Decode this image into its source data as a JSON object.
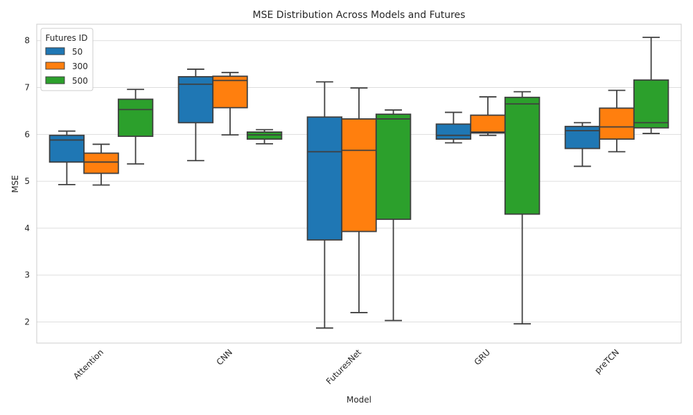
{
  "chart_data": {
    "type": "box",
    "title": "MSE Distribution Across Models and Futures",
    "xlabel": "Model",
    "ylabel": "MSE",
    "ylim": [
      1.55,
      8.35
    ],
    "yticks": [
      2,
      3,
      4,
      5,
      6,
      7,
      8
    ],
    "grid": true,
    "legend": {
      "title": "Futures ID",
      "position": "top-left"
    },
    "categories": [
      "Attention",
      "CNN",
      "FuturesNet",
      "GRU",
      "preTCN"
    ],
    "series": [
      {
        "name": "50",
        "color": "#1f77b4",
        "boxes": [
          {
            "min": 4.93,
            "q1": 5.41,
            "median": 5.88,
            "q3": 5.98,
            "max": 6.07
          },
          {
            "min": 5.44,
            "q1": 6.25,
            "median": 7.07,
            "q3": 7.23,
            "max": 7.39
          },
          {
            "min": 1.87,
            "q1": 3.75,
            "median": 5.63,
            "q3": 6.37,
            "max": 7.12
          },
          {
            "min": 5.82,
            "q1": 5.9,
            "median": 5.98,
            "q3": 6.22,
            "max": 6.47
          },
          {
            "min": 5.32,
            "q1": 5.7,
            "median": 6.08,
            "q3": 6.17,
            "max": 6.25
          }
        ]
      },
      {
        "name": "300",
        "color": "#ff7f0e",
        "boxes": [
          {
            "min": 4.92,
            "q1": 5.17,
            "median": 5.41,
            "q3": 5.6,
            "max": 5.79
          },
          {
            "min": 5.99,
            "q1": 6.57,
            "median": 7.15,
            "q3": 7.24,
            "max": 7.32
          },
          {
            "min": 2.2,
            "q1": 3.93,
            "median": 5.66,
            "q3": 6.33,
            "max": 6.99
          },
          {
            "min": 5.98,
            "q1": 6.03,
            "median": 6.05,
            "q3": 6.41,
            "max": 6.8
          },
          {
            "min": 5.63,
            "q1": 5.9,
            "median": 6.16,
            "q3": 6.56,
            "max": 6.94
          }
        ]
      },
      {
        "name": "500",
        "color": "#2ca02c",
        "boxes": [
          {
            "min": 5.37,
            "q1": 5.96,
            "median": 6.53,
            "q3": 6.75,
            "max": 6.96
          },
          {
            "min": 5.8,
            "q1": 5.9,
            "median": 5.99,
            "q3": 6.05,
            "max": 6.1
          },
          {
            "min": 2.03,
            "q1": 4.19,
            "median": 6.33,
            "q3": 6.43,
            "max": 6.52
          },
          {
            "min": 1.96,
            "q1": 4.3,
            "median": 6.65,
            "q3": 6.79,
            "max": 6.91
          },
          {
            "min": 6.02,
            "q1": 6.14,
            "median": 6.25,
            "q3": 7.16,
            "max": 8.07
          }
        ]
      }
    ]
  }
}
